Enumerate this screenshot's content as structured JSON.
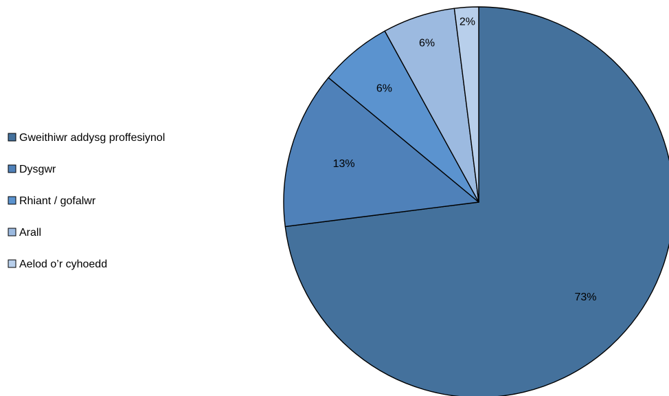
{
  "chart_data": {
    "type": "pie",
    "title": "",
    "start_angle_deg": 0,
    "direction": "clockwise",
    "slices": [
      {
        "label": "Gweithiwr addysg proffesiynol",
        "value": 73,
        "display": "73%",
        "color": "#44719c"
      },
      {
        "label": "Dysgwr",
        "value": 13,
        "display": "13%",
        "color": "#4f81b9"
      },
      {
        "label": "Rhiant / gofalwr",
        "value": 6,
        "display": "6%",
        "color": "#5b93cf"
      },
      {
        "label": "Arall",
        "value": 6,
        "display": "6%",
        "color": "#9cbae0"
      },
      {
        "label": "Aelod o’r cyhoedd",
        "value": 2,
        "display": "2%",
        "color": "#b8cfeb"
      }
    ],
    "legend": {
      "placement": "left",
      "items": [
        "Gweithiwr addysg proffesiynol",
        "Dysgwr",
        "Rhiant / gofalwr",
        "Arall",
        "Aelod o’r cyhoedd"
      ]
    },
    "outline_color": "#000000"
  }
}
